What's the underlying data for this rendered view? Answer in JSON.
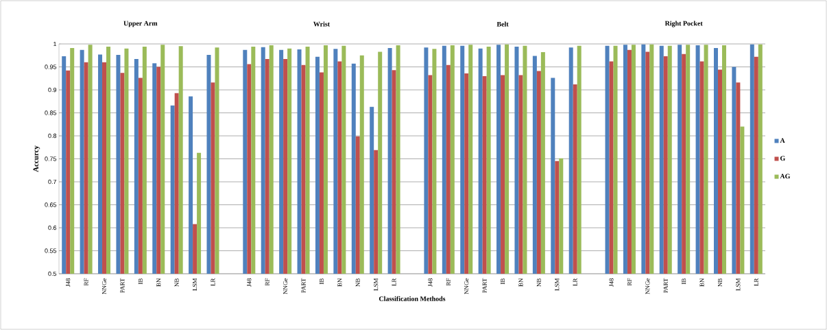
{
  "chart_data": {
    "type": "bar",
    "xlabel": "Classification Methods",
    "ylabel": "Accurcy",
    "categories": [
      "J48",
      "RF",
      "NNGe",
      "PART",
      "IB",
      "BN",
      "NB",
      "LSM",
      "LR",
      null,
      "J48",
      "RF",
      "NNGe",
      "PART",
      "IB",
      "BN",
      "NB",
      "LSM",
      "LR",
      null,
      "J48",
      "RF",
      "NNGe",
      "PART",
      "IB",
      "BN",
      "NB",
      "LSM",
      "LR",
      null,
      "J48",
      "RF",
      "NNGe",
      "PART",
      "IB",
      "BN",
      "NB",
      "LSM",
      "LR"
    ],
    "series": [
      {
        "name": "A",
        "color": "#4f81bd",
        "values": [
          0.973,
          0.987,
          0.977,
          0.976,
          0.967,
          0.958,
          0.866,
          0.886,
          0.976,
          null,
          0.987,
          0.993,
          0.987,
          0.988,
          0.972,
          0.989,
          0.957,
          0.863,
          0.991,
          null,
          0.992,
          0.996,
          0.996,
          0.99,
          0.998,
          0.994,
          0.974,
          0.926,
          0.992,
          null,
          0.996,
          0.998,
          0.999,
          0.996,
          0.998,
          0.997,
          0.991,
          0.95,
          0.999
        ]
      },
      {
        "name": "G",
        "color": "#c0504d",
        "values": [
          0.942,
          0.96,
          0.96,
          0.937,
          0.926,
          0.95,
          0.893,
          0.608,
          0.916,
          null,
          0.956,
          0.967,
          0.967,
          0.954,
          0.938,
          0.962,
          0.799,
          0.769,
          0.943,
          null,
          0.932,
          0.954,
          0.936,
          0.93,
          0.932,
          0.932,
          0.941,
          0.745,
          0.912,
          null,
          0.962,
          0.987,
          0.983,
          0.973,
          0.978,
          0.962,
          0.944,
          0.916,
          0.972
        ]
      },
      {
        "name": "AG",
        "color": "#9bbb59",
        "values": [
          0.991,
          0.998,
          0.994,
          0.99,
          0.994,
          0.998,
          0.995,
          0.763,
          0.992,
          null,
          0.994,
          0.997,
          0.99,
          0.994,
          0.997,
          0.996,
          0.975,
          0.983,
          0.997,
          null,
          0.989,
          0.997,
          0.998,
          0.994,
          0.999,
          0.996,
          0.982,
          0.751,
          0.996,
          null,
          0.996,
          0.998,
          0.999,
          0.996,
          0.998,
          0.998,
          0.997,
          0.82,
          0.999
        ]
      }
    ],
    "ylim": [
      0.5,
      1
    ],
    "yticks": [
      0.5,
      0.55,
      0.6,
      0.65,
      0.7,
      0.75,
      0.8,
      0.85,
      0.9,
      0.95,
      1
    ],
    "grid": "y",
    "legend": "right",
    "annotations": [
      "Upper Arm",
      "Wrist",
      "Belt",
      "Right Pocket"
    ]
  }
}
